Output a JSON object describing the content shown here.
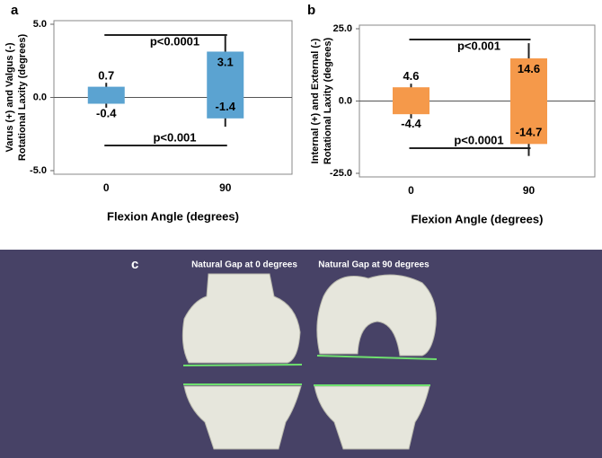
{
  "panel_labels": [
    "a",
    "b",
    "c"
  ],
  "chart_data": [
    {
      "type": "floating-bar",
      "color": "#5ba3d1",
      "ylabel": [
        "Varus (+) and Valgus (-)",
        "Rotational Laxity (degrees)"
      ],
      "xlabel": "Flexion Angle (degrees)",
      "categories": [
        "0",
        "90"
      ],
      "upper": [
        0.7,
        3.1
      ],
      "lower": [
        -0.4,
        -1.4
      ],
      "whisker_upper": [
        1.0,
        4.2
      ],
      "whisker_lower": [
        -0.7,
        -2.0
      ],
      "ylim": [
        -5,
        5
      ],
      "yticks": [
        {
          "value": -5,
          "label": "-5.0"
        },
        {
          "value": 0,
          "label": "0.0"
        },
        {
          "value": 5,
          "label": "5.0"
        }
      ],
      "annotations": [
        {
          "text": "p<0.0001",
          "placement": "top"
        },
        {
          "text": "p<0.001",
          "placement": "bottom"
        }
      ]
    },
    {
      "type": "floating-bar",
      "color": "#f5994a",
      "ylabel": [
        "Internal (+) and External (-)",
        "Rotational Laxity (degrees)"
      ],
      "xlabel": "Flexion Angle (degrees)",
      "categories": [
        "0",
        "90"
      ],
      "upper": [
        4.6,
        14.6
      ],
      "lower": [
        -4.4,
        -14.7
      ],
      "whisker_upper": [
        6.0,
        20.0
      ],
      "whisker_lower": [
        -6.0,
        -19.0
      ],
      "ylim": [
        -25,
        25
      ],
      "yticks": [
        {
          "value": -25,
          "label": "-25.0"
        },
        {
          "value": 0,
          "label": "0.0"
        },
        {
          "value": 25,
          "label": "25.0"
        }
      ],
      "annotations": [
        {
          "text": "p<0.001",
          "placement": "top"
        },
        {
          "text": "p<0.0001",
          "placement": "bottom"
        }
      ]
    }
  ],
  "image_panel": {
    "captions": [
      "Natural Gap at 0 degrees",
      "Natural Gap at 90 degrees"
    ]
  }
}
